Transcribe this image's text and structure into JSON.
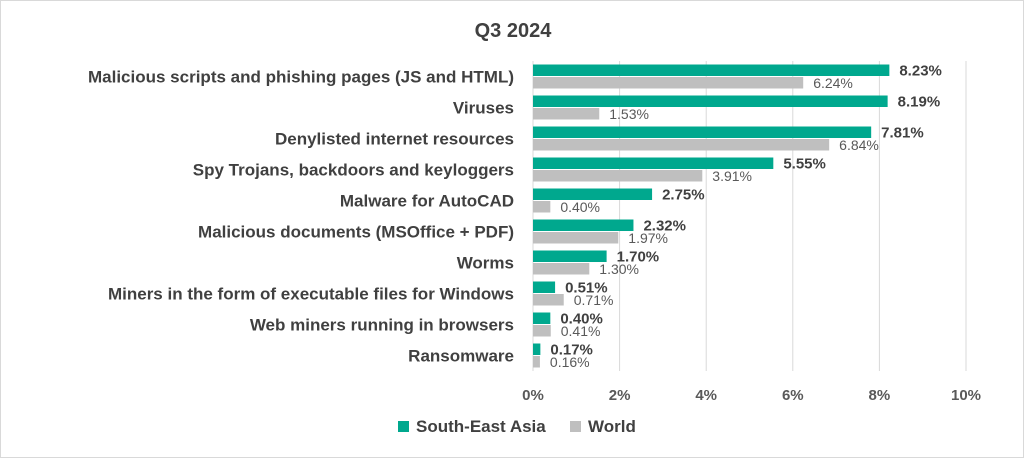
{
  "chart_data": {
    "type": "bar",
    "orientation": "horizontal",
    "title": "Q3 2024",
    "categories": [
      "Malicious scripts and phishing pages (JS and HTML)",
      "Viruses",
      "Denylisted internet resources",
      "Spy Trojans, backdoors and keyloggers",
      "Malware for AutoCAD",
      "Malicious documents (MSOffice + PDF)",
      "Worms",
      "Miners in the form of executable files for Windows",
      "Web miners running in browsers",
      "Ransomware"
    ],
    "series": [
      {
        "name": "South-East Asia",
        "color": "#00A88E",
        "values": [
          8.23,
          8.19,
          7.81,
          5.55,
          2.75,
          2.32,
          1.7,
          0.51,
          0.4,
          0.17
        ],
        "labels": [
          "8.23%",
          "8.19%",
          "7.81%",
          "5.55%",
          "2.75%",
          "2.32%",
          "1.70%",
          "0.51%",
          "0.40%",
          "0.17%"
        ]
      },
      {
        "name": "World",
        "color": "#BFBFBF",
        "values": [
          6.24,
          1.53,
          6.84,
          3.91,
          0.4,
          1.97,
          1.3,
          0.71,
          0.41,
          0.16
        ],
        "labels": [
          "6.24%",
          "1.53%",
          "6.84%",
          "3.91%",
          "0.40%",
          "1.97%",
          "1.30%",
          "0.71%",
          "0.41%",
          "0.16%"
        ]
      }
    ],
    "xlim": [
      0,
      10
    ],
    "xticks": [
      "0%",
      "2%",
      "4%",
      "6%",
      "8%",
      "10%"
    ],
    "grid": true,
    "legend_position": "bottom"
  }
}
